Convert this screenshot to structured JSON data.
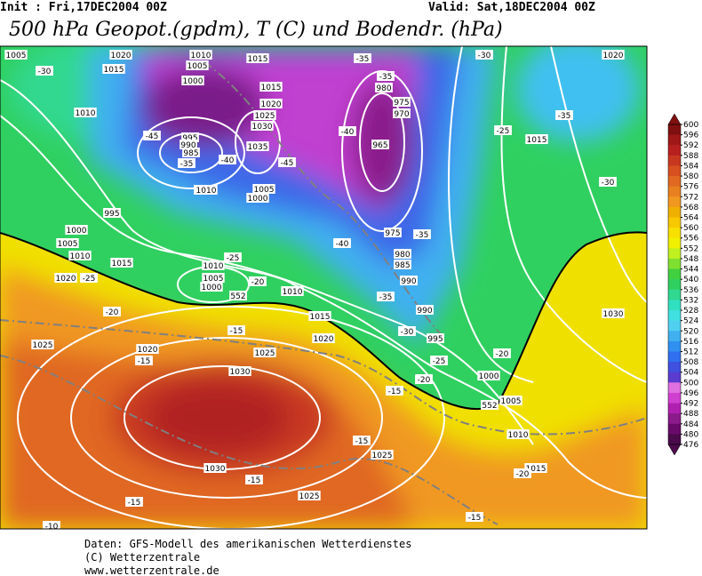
{
  "header": {
    "init": "Init : Fri,17DEC2004 00Z",
    "valid": "Valid: Sat,18DEC2004 00Z",
    "title": "500 hPa Geopot.(gpdm), T (C) und Bodendr. (hPa)"
  },
  "colorbar": {
    "labels": [
      600,
      596,
      592,
      588,
      584,
      580,
      576,
      572,
      568,
      564,
      560,
      556,
      552,
      548,
      544,
      540,
      536,
      532,
      528,
      524,
      520,
      516,
      512,
      508,
      504,
      500,
      496,
      492,
      488,
      484,
      480,
      476
    ],
    "colors": [
      "#801010",
      "#a01818",
      "#b82020",
      "#c83820",
      "#d85020",
      "#e06820",
      "#e88020",
      "#f09820",
      "#f0b000",
      "#f8c800",
      "#f8e000",
      "#f0f000",
      "#c0f020",
      "#80e030",
      "#40d040",
      "#30d060",
      "#30d890",
      "#30e0c0",
      "#40e0e0",
      "#50d0f0",
      "#40b0f0",
      "#3090f0",
      "#3070f0",
      "#4050e0",
      "#5a3cd0",
      "#e070e0",
      "#d040d0",
      "#b020b0",
      "#8b1a8b",
      "#6a0a6a",
      "#4b0a4b"
    ]
  },
  "map_labels": [
    "1005",
    "1020",
    "1010",
    "1015",
    "-30",
    "1015",
    "1005",
    "1000",
    "1010",
    "1015",
    "1020",
    "1025",
    "1030",
    "1035",
    "-45",
    "995",
    "990",
    "985",
    "-35",
    "-40",
    "-45",
    "-50",
    "1010",
    "1005",
    "1000",
    "995",
    "1000",
    "1005",
    "1010",
    "1015",
    "1020",
    "-25",
    "1010",
    "-25",
    "1005",
    "1000",
    "552",
    "-20",
    "1010",
    "-20",
    "1015",
    "-15",
    "1020",
    "1025",
    "1020",
    "1025",
    "-15",
    "1030",
    "-35",
    "-35",
    "980",
    "975",
    "970",
    "-40",
    "965",
    "-25",
    "1015",
    "-35",
    "-30",
    "1020",
    "-30",
    "-40",
    "975",
    "-35",
    "980",
    "985",
    "990",
    "-35",
    "990",
    "995",
    "-30",
    "-25",
    "-20",
    "-20",
    "1000",
    "-15",
    "552",
    "1005",
    "1030",
    "1010",
    "-15",
    "1025",
    "1015",
    "-20",
    "1030",
    "-15",
    "1025",
    "-15",
    "-15",
    "-10"
  ],
  "footer": [
    "Daten: GFS-Modell des amerikanischen Wetterdienstes",
    "(C) Wetterzentrale",
    "www.wetterzentrale.de"
  ]
}
